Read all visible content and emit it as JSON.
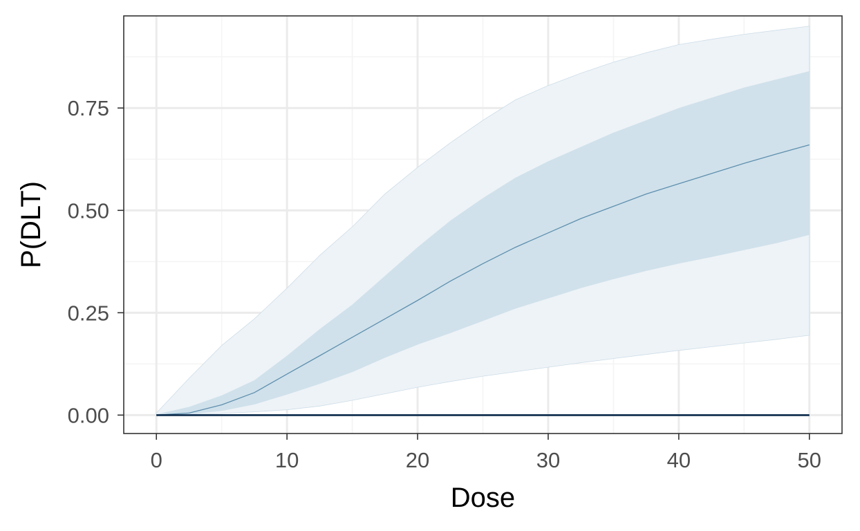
{
  "chart_data": {
    "type": "line",
    "xlabel": "Dose",
    "ylabel": "P(DLT)",
    "xlim": [
      -2.5,
      52.5
    ],
    "ylim": [
      -0.045,
      0.975
    ],
    "x_ticks": [
      0,
      10,
      20,
      30,
      40,
      50
    ],
    "x_tick_labels": [
      "0",
      "10",
      "20",
      "30",
      "40",
      "50"
    ],
    "x_minor_ticks": [
      5,
      15,
      25,
      35,
      45
    ],
    "y_ticks": [
      0,
      0.25,
      0.5,
      0.75
    ],
    "y_tick_labels": [
      "0.00",
      "0.25",
      "0.50",
      "0.75"
    ],
    "y_minor_ticks": [
      0.125,
      0.375,
      0.625,
      0.875
    ],
    "grid": true,
    "legend": "none",
    "x": [
      0,
      2.5,
      5,
      7.5,
      10,
      12.5,
      15,
      17.5,
      20,
      22.5,
      25,
      27.5,
      30,
      32.5,
      35,
      37.5,
      40,
      42.5,
      45,
      47.5,
      50
    ],
    "series": [
      {
        "role": "outer_band",
        "lower": [
          0,
          0.002,
          0.004,
          0.008,
          0.013,
          0.022,
          0.036,
          0.052,
          0.068,
          0.082,
          0.095,
          0.106,
          0.117,
          0.128,
          0.138,
          0.148,
          0.158,
          0.167,
          0.176,
          0.185,
          0.195
        ],
        "upper": [
          0.005,
          0.09,
          0.17,
          0.235,
          0.31,
          0.39,
          0.46,
          0.54,
          0.605,
          0.665,
          0.72,
          0.77,
          0.805,
          0.835,
          0.862,
          0.885,
          0.905,
          0.918,
          0.93,
          0.94,
          0.95
        ]
      },
      {
        "role": "inner_band",
        "lower": [
          0,
          0.002,
          0.01,
          0.026,
          0.05,
          0.076,
          0.105,
          0.14,
          0.172,
          0.2,
          0.23,
          0.26,
          0.285,
          0.31,
          0.332,
          0.352,
          0.37,
          0.386,
          0.403,
          0.42,
          0.44
        ],
        "upper": [
          0.002,
          0.02,
          0.048,
          0.085,
          0.145,
          0.21,
          0.27,
          0.34,
          0.41,
          0.475,
          0.53,
          0.58,
          0.62,
          0.655,
          0.69,
          0.72,
          0.75,
          0.775,
          0.8,
          0.82,
          0.84
        ]
      },
      {
        "role": "median",
        "values": [
          0,
          0.005,
          0.025,
          0.055,
          0.1,
          0.145,
          0.19,
          0.235,
          0.28,
          0.327,
          0.37,
          0.41,
          0.445,
          0.48,
          0.51,
          0.54,
          0.565,
          0.59,
          0.615,
          0.638,
          0.66
        ]
      },
      {
        "role": "reference_line",
        "values": [
          0,
          0,
          0,
          0,
          0,
          0,
          0,
          0,
          0,
          0,
          0,
          0,
          0,
          0,
          0,
          0,
          0,
          0,
          0,
          0,
          0
        ]
      }
    ],
    "colors": {
      "outer_band_fill": "#eef3f7",
      "outer_band_edge": "#cddde8",
      "inner_band_fill": "#d0e1eb",
      "median_line": "#5e8fae",
      "reference_line": "#0b2a4a",
      "grid_major": "#ebebeb",
      "grid_minor": "#f4f4f4",
      "panel_border": "#333333"
    }
  }
}
